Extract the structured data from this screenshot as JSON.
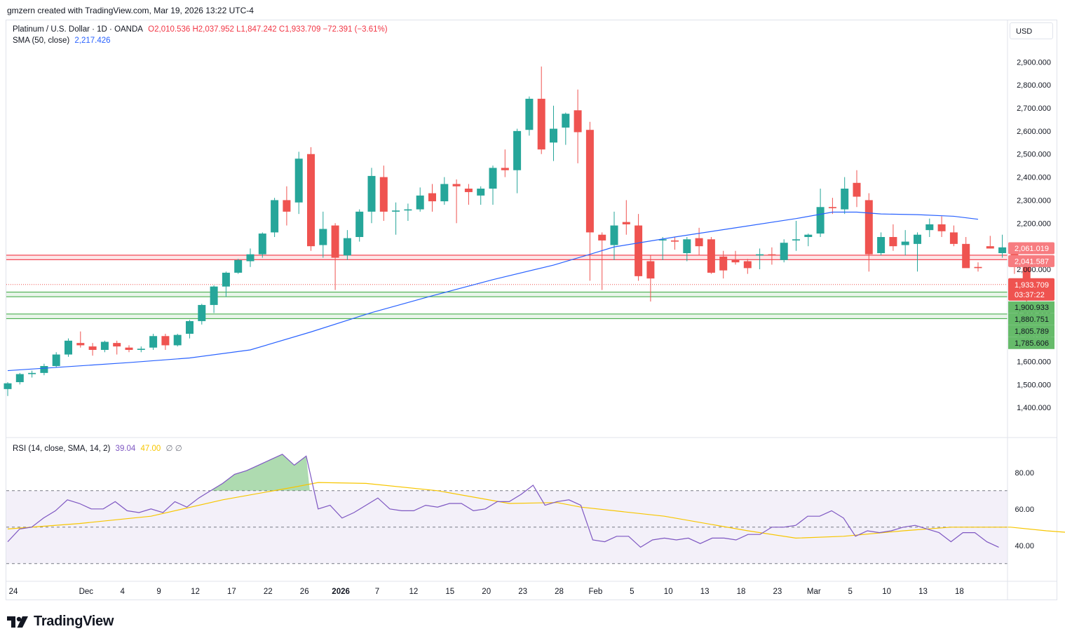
{
  "credit": "gmzern created with TradingView.com, Mar 19, 2026 13:22 UTC-4",
  "legend": {
    "symbol": "Platinum / U.S. Dollar · 1D · OANDA",
    "ohlc": "O2,010.536  H2,037.952  L1,847.242  C1,933.709  −72.391 (−3.61%)",
    "sma_label": "SMA (50, close)",
    "sma_value": "2,217.426",
    "rsi_label": "RSI (14, close, SMA, 14, 2)",
    "rsi_value": "39.04",
    "rsi_sma_value": "47.00",
    "rsi_extra": "∅  ∅"
  },
  "currency": "USD",
  "brand": "TradingView",
  "colors": {
    "up": "#26a69a",
    "down": "#ef5350",
    "sma": "#2962ff",
    "rsi": "#7e57c2",
    "rsi_sma": "#f7c600",
    "resistance": "#f23645",
    "support": "#4caf50"
  },
  "chart_data": [
    {
      "type": "candlestick",
      "title": "Platinum / U.S. Dollar · 1D · OANDA",
      "ylim": [
        1300,
        2980
      ],
      "y_ticks": [
        "2,900.000",
        "2,800.000",
        "2,700.000",
        "2,600.000",
        "2,500.000",
        "2,400.000",
        "2,300.000",
        "2,200.000",
        "2,100.000",
        "2,000.000",
        "1,900.000",
        "1,800.000",
        "1,700.000",
        "1,600.000",
        "1,500.000",
        "1,400.000"
      ],
      "x_labels": [
        "24",
        "Dec",
        "4",
        "9",
        "12",
        "17",
        "22",
        "26",
        "2026",
        "7",
        "12",
        "15",
        "20",
        "23",
        "28",
        "Feb",
        "5",
        "10",
        "13",
        "18",
        "23",
        "Mar",
        "5",
        "10",
        "13",
        "18"
      ],
      "x_label_indices": [
        0,
        6,
        9,
        12,
        15,
        18,
        21,
        24,
        27,
        30,
        33,
        36,
        39,
        42,
        45,
        48,
        51,
        54,
        57,
        60,
        63,
        66,
        69,
        72,
        75,
        78
      ],
      "ohlc": [
        [
          1480,
          1510,
          1450,
          1505
        ],
        [
          1510,
          1550,
          1500,
          1545
        ],
        [
          1545,
          1560,
          1530,
          1550
        ],
        [
          1550,
          1590,
          1540,
          1580
        ],
        [
          1580,
          1640,
          1575,
          1630
        ],
        [
          1630,
          1700,
          1620,
          1690
        ],
        [
          1680,
          1730,
          1660,
          1670
        ],
        [
          1665,
          1680,
          1625,
          1650
        ],
        [
          1650,
          1690,
          1640,
          1685
        ],
        [
          1680,
          1690,
          1630,
          1665
        ],
        [
          1660,
          1670,
          1640,
          1650
        ],
        [
          1650,
          1665,
          1640,
          1655
        ],
        [
          1660,
          1720,
          1650,
          1710
        ],
        [
          1710,
          1720,
          1650,
          1670
        ],
        [
          1670,
          1720,
          1665,
          1715
        ],
        [
          1720,
          1780,
          1700,
          1775
        ],
        [
          1775,
          1850,
          1760,
          1845
        ],
        [
          1845,
          1930,
          1810,
          1925
        ],
        [
          1925,
          1990,
          1880,
          1985
        ],
        [
          1985,
          2045,
          1980,
          2040
        ],
        [
          2035,
          2090,
          2010,
          2065
        ],
        [
          2065,
          2160,
          2050,
          2155
        ],
        [
          2160,
          2310,
          2140,
          2300
        ],
        [
          2300,
          2360,
          2190,
          2250
        ],
        [
          2290,
          2510,
          2240,
          2480
        ],
        [
          2500,
          2530,
          2080,
          2100
        ],
        [
          2105,
          2250,
          2050,
          2175
        ],
        [
          2190,
          2200,
          1910,
          2050
        ],
        [
          2060,
          2170,
          2040,
          2135
        ],
        [
          2140,
          2260,
          2120,
          2250
        ],
        [
          2250,
          2440,
          2200,
          2405
        ],
        [
          2400,
          2450,
          2210,
          2250
        ],
        [
          2250,
          2290,
          2150,
          2255
        ],
        [
          2255,
          2285,
          2210,
          2260
        ],
        [
          2260,
          2355,
          2250,
          2320
        ],
        [
          2330,
          2370,
          2250,
          2295
        ],
        [
          2295,
          2400,
          2280,
          2370
        ],
        [
          2370,
          2390,
          2200,
          2360
        ],
        [
          2350,
          2370,
          2280,
          2335
        ],
        [
          2320,
          2360,
          2280,
          2350
        ],
        [
          2350,
          2450,
          2280,
          2440
        ],
        [
          2440,
          2520,
          2400,
          2430
        ],
        [
          2430,
          2610,
          2330,
          2600
        ],
        [
          2605,
          2750,
          2580,
          2740
        ],
        [
          2740,
          2880,
          2500,
          2520
        ],
        [
          2550,
          2710,
          2470,
          2610
        ],
        [
          2615,
          2680,
          2540,
          2675
        ],
        [
          2690,
          2780,
          2460,
          2595
        ],
        [
          2605,
          2640,
          1950,
          2160
        ],
        [
          2150,
          2160,
          1910,
          2125
        ],
        [
          2105,
          2250,
          2040,
          2190
        ],
        [
          2205,
          2300,
          2150,
          2195
        ],
        [
          2190,
          2240,
          1950,
          1970
        ],
        [
          2035,
          2060,
          1860,
          1960
        ],
        [
          2125,
          2140,
          2040,
          2130
        ],
        [
          2125,
          2140,
          2085,
          2120
        ],
        [
          2070,
          2140,
          2035,
          2130
        ],
        [
          2135,
          2180,
          2060,
          2100
        ],
        [
          2130,
          2140,
          1980,
          1985
        ],
        [
          2055,
          2080,
          1960,
          1995
        ],
        [
          2040,
          2080,
          2020,
          2030
        ],
        [
          2035,
          2045,
          1980,
          2005
        ],
        [
          2060,
          2090,
          2000,
          2065
        ],
        [
          2065,
          2095,
          2020,
          2060
        ],
        [
          2040,
          2130,
          2030,
          2115
        ],
        [
          2125,
          2210,
          2080,
          2130
        ],
        [
          2140,
          2155,
          2100,
          2150
        ],
        [
          2155,
          2350,
          2140,
          2270
        ],
        [
          2270,
          2310,
          2240,
          2265
        ],
        [
          2260,
          2400,
          2240,
          2350
        ],
        [
          2375,
          2430,
          2270,
          2315
        ],
        [
          2300,
          2330,
          1990,
          2065
        ],
        [
          2070,
          2160,
          2060,
          2140
        ],
        [
          2140,
          2195,
          2080,
          2100
        ],
        [
          2105,
          2170,
          2060,
          2120
        ],
        [
          2110,
          2160,
          1990,
          2150
        ],
        [
          2170,
          2220,
          2140,
          2195
        ],
        [
          2195,
          2230,
          2140,
          2165
        ],
        [
          2160,
          2190,
          2100,
          2110
        ],
        [
          2110,
          2140,
          2010,
          2005
        ],
        [
          2010,
          2030,
          1990,
          2005
        ],
        [
          2100,
          2145,
          2090,
          2090
        ],
        [
          2070,
          2150,
          2050,
          2095
        ],
        [
          2100,
          2110,
          1980,
          2010
        ],
        [
          2010,
          2038,
          1847,
          1934
        ]
      ],
      "sma_50": [
        [
          0,
          1560
        ],
        [
          10,
          1595
        ],
        [
          15,
          1615
        ],
        [
          20,
          1650
        ],
        [
          25,
          1728
        ],
        [
          30,
          1812
        ],
        [
          35,
          1885
        ],
        [
          40,
          1955
        ],
        [
          45,
          2018
        ],
        [
          48,
          2065
        ],
        [
          50,
          2097
        ],
        [
          55,
          2140
        ],
        [
          60,
          2180
        ],
        [
          65,
          2220
        ],
        [
          68,
          2248
        ],
        [
          70,
          2248
        ],
        [
          72,
          2240
        ],
        [
          75,
          2237
        ],
        [
          78,
          2230
        ],
        [
          80,
          2217
        ]
      ],
      "price_levels": [
        {
          "label": "2,061.019",
          "value": 2061.019,
          "kind": "resistance"
        },
        {
          "label": "2,041.587",
          "value": 2041.587,
          "kind": "resistance"
        },
        {
          "label": "1,900.933",
          "value": 1900.933,
          "kind": "support"
        },
        {
          "label": "1,880.751",
          "value": 1880.751,
          "kind": "support"
        },
        {
          "label": "1,805.789",
          "value": 1805.789,
          "kind": "support"
        },
        {
          "label": "1,785.606",
          "value": 1785.606,
          "kind": "support"
        }
      ],
      "last_price": {
        "label": "1,933.709",
        "countdown": "03:37:22",
        "value": 1933.709
      }
    },
    {
      "type": "line",
      "title": "RSI (14, close, SMA, 14, 2)",
      "ylim": [
        23,
        93
      ],
      "y_ticks": [
        "80.00",
        "60.00",
        "40.00"
      ],
      "bands": [
        30,
        50,
        70
      ],
      "rsi": [
        [
          0,
          42
        ],
        [
          1,
          49
        ],
        [
          2,
          50
        ],
        [
          3,
          55
        ],
        [
          4,
          59
        ],
        [
          5,
          65
        ],
        [
          6,
          63
        ],
        [
          7,
          60
        ],
        [
          8,
          60
        ],
        [
          9,
          64
        ],
        [
          10,
          59
        ],
        [
          11,
          58
        ],
        [
          12,
          60
        ],
        [
          13,
          58
        ],
        [
          14,
          64
        ],
        [
          15,
          61
        ],
        [
          16,
          66
        ],
        [
          17,
          70
        ],
        [
          18,
          74
        ],
        [
          19,
          79
        ],
        [
          20,
          81
        ],
        [
          21,
          84
        ],
        [
          22,
          87
        ],
        [
          23,
          90
        ],
        [
          24,
          84
        ],
        [
          25,
          89
        ],
        [
          26,
          60
        ],
        [
          27,
          62
        ],
        [
          28,
          55
        ],
        [
          29,
          58
        ],
        [
          30,
          62
        ],
        [
          31,
          66
        ],
        [
          32,
          60
        ],
        [
          33,
          59
        ],
        [
          34,
          59
        ],
        [
          35,
          62
        ],
        [
          36,
          61
        ],
        [
          37,
          63
        ],
        [
          38,
          63
        ],
        [
          39,
          59
        ],
        [
          40,
          60
        ],
        [
          41,
          64
        ],
        [
          42,
          64
        ],
        [
          43,
          68
        ],
        [
          44,
          73
        ],
        [
          45,
          62
        ],
        [
          46,
          64
        ],
        [
          47,
          65
        ],
        [
          48,
          62
        ],
        [
          49,
          43
        ],
        [
          50,
          42
        ],
        [
          51,
          45
        ],
        [
          52,
          45
        ],
        [
          53,
          39
        ],
        [
          54,
          43
        ],
        [
          55,
          44
        ],
        [
          56,
          43
        ],
        [
          57,
          44
        ],
        [
          58,
          41
        ],
        [
          59,
          44
        ],
        [
          60,
          44
        ],
        [
          61,
          43
        ],
        [
          62,
          46
        ],
        [
          63,
          46
        ],
        [
          64,
          50
        ],
        [
          65,
          50
        ],
        [
          66,
          51
        ],
        [
          67,
          56
        ],
        [
          68,
          56
        ],
        [
          69,
          59
        ],
        [
          70,
          55
        ],
        [
          71,
          45
        ],
        [
          72,
          48
        ],
        [
          73,
          47
        ],
        [
          74,
          48
        ],
        [
          75,
          50
        ],
        [
          76,
          51
        ],
        [
          77,
          49
        ],
        [
          78,
          47
        ],
        [
          79,
          42
        ],
        [
          80,
          47
        ],
        [
          81,
          47
        ],
        [
          82,
          42
        ],
        [
          83,
          39
        ]
      ],
      "rsi_sma": [
        [
          0,
          49
        ],
        [
          6,
          52
        ],
        [
          12,
          56
        ],
        [
          18,
          65
        ],
        [
          24,
          72
        ],
        [
          26,
          74.5
        ],
        [
          30,
          74
        ],
        [
          36,
          70
        ],
        [
          42,
          63
        ],
        [
          46,
          63.5
        ],
        [
          48,
          61
        ],
        [
          55,
          56
        ],
        [
          62,
          48
        ],
        [
          66,
          44
        ],
        [
          70,
          45
        ],
        [
          75,
          48
        ],
        [
          79,
          50
        ],
        [
          84,
          50
        ],
        [
          87,
          48
        ],
        [
          89,
          47
        ]
      ]
    }
  ]
}
